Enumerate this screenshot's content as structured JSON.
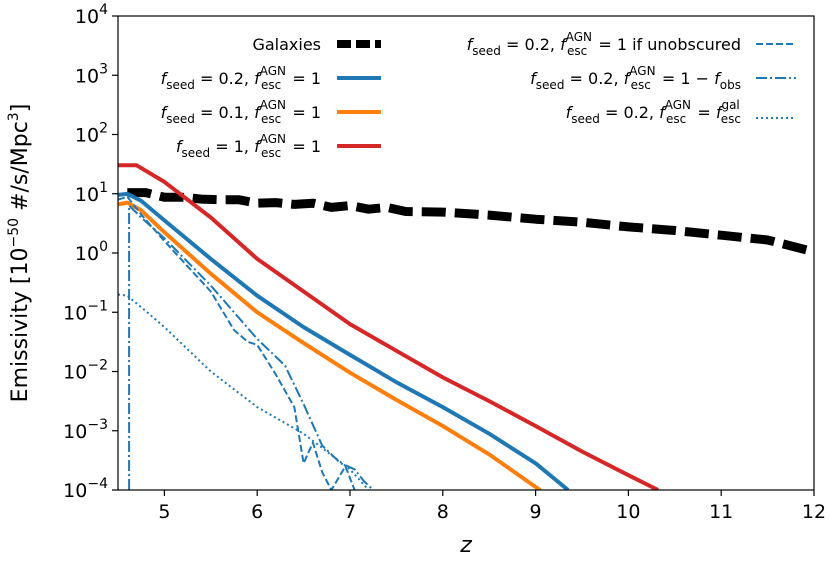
{
  "chart_data": {
    "type": "line",
    "xlabel": "z",
    "ylabel": "Emissivity [10⁻⁵⁰ #/s/Mpc³]",
    "xlim": [
      4.5,
      12
    ],
    "ylim_log10": [
      -4,
      4
    ],
    "yscale": "log",
    "x_ticks": [
      5,
      6,
      7,
      8,
      9,
      10,
      11,
      12
    ],
    "x_tick_labels": [
      "5",
      "6",
      "7",
      "8",
      "9",
      "10",
      "11",
      "12"
    ],
    "y_ticks": [
      {
        "base": "10",
        "exp": "−4",
        "value": -4
      },
      {
        "base": "10",
        "exp": "−3",
        "value": -3
      },
      {
        "base": "10",
        "exp": "−2",
        "value": -2
      },
      {
        "base": "10",
        "exp": "−1",
        "value": -1
      },
      {
        "base": "10",
        "exp": "0",
        "value": 0
      },
      {
        "base": "10",
        "exp": "1",
        "value": 1
      },
      {
        "base": "10",
        "exp": "2",
        "value": 2
      },
      {
        "base": "10",
        "exp": "3",
        "value": 3
      },
      {
        "base": "10",
        "exp": "4",
        "value": 4
      }
    ],
    "legend_left_position": "top-center",
    "legend_right_position": "top-right",
    "series": [
      {
        "name": "Galaxies",
        "legend_label": "Galaxies",
        "color": "#000000",
        "style": "dashed-thick",
        "x": [
          4.6,
          4.8,
          5.0,
          5.2,
          5.4,
          5.6,
          5.8,
          6.0,
          6.2,
          6.4,
          6.6,
          6.8,
          7.0,
          7.2,
          7.4,
          7.6,
          8.0,
          8.5,
          9.0,
          9.5,
          10.0,
          10.5,
          11.0,
          11.5,
          12.0
        ],
        "y_log10": [
          1.02,
          1.02,
          0.94,
          0.94,
          0.91,
          0.9,
          0.9,
          0.84,
          0.85,
          0.82,
          0.84,
          0.77,
          0.8,
          0.74,
          0.77,
          0.7,
          0.69,
          0.64,
          0.57,
          0.52,
          0.44,
          0.38,
          0.3,
          0.22,
          0.02
        ]
      },
      {
        "name": "fseed=0.2 fesc=1",
        "legend_label": "f_seed = 0.2, f_esc^AGN = 1",
        "color": "#1f77b4",
        "style": "solid",
        "x": [
          4.5,
          4.6,
          4.75,
          5.0,
          5.5,
          6.0,
          6.5,
          7.0,
          7.5,
          8.0,
          8.5,
          9.0,
          9.35
        ],
        "y_log10": [
          0.98,
          1.0,
          0.88,
          0.55,
          -0.1,
          -0.72,
          -1.25,
          -1.72,
          -2.18,
          -2.6,
          -3.05,
          -3.55,
          -4.0
        ]
      },
      {
        "name": "fseed=0.1 fesc=1",
        "legend_label": "f_seed = 0.1, f_esc^AGN = 1",
        "color": "#ff7f0e",
        "style": "solid",
        "x": [
          4.5,
          4.6,
          4.75,
          5.0,
          5.5,
          6.0,
          6.5,
          7.0,
          7.5,
          8.0,
          8.5,
          9.0,
          9.05
        ],
        "y_log10": [
          0.82,
          0.85,
          0.72,
          0.35,
          -0.35,
          -1.0,
          -1.52,
          -2.02,
          -2.48,
          -2.92,
          -3.4,
          -3.95,
          -4.0
        ]
      },
      {
        "name": "fseed=1 fesc=1",
        "legend_label": "f_seed = 1, f_esc^AGN = 1",
        "color": "#d62728",
        "style": "solid",
        "x": [
          4.5,
          4.7,
          5.0,
          5.5,
          6.0,
          6.5,
          7.0,
          7.5,
          8.0,
          8.5,
          9.0,
          9.5,
          10.0,
          10.32
        ],
        "y_log10": [
          1.48,
          1.48,
          1.2,
          0.6,
          -0.1,
          -0.65,
          -1.2,
          -1.65,
          -2.1,
          -2.5,
          -2.92,
          -3.35,
          -3.75,
          -4.0
        ]
      },
      {
        "name": "fseed=0.2 fesc=1 if unobscured",
        "legend_label": "f_seed = 0.2, f_esc^AGN = 1 if unobscured",
        "color": "#1f77b4",
        "style": "dashed",
        "x": [
          4.5,
          4.6,
          4.75,
          5.0,
          5.5,
          5.75,
          5.9,
          6.0,
          6.2,
          6.4,
          6.5,
          6.6,
          6.7,
          6.8,
          6.95,
          7.05
        ],
        "y_log10": [
          0.9,
          0.95,
          0.65,
          0.2,
          -0.65,
          -1.3,
          -1.5,
          -1.55,
          -2.05,
          -2.6,
          -3.55,
          -3.2,
          -3.7,
          -4.0,
          -3.6,
          -4.0
        ]
      },
      {
        "name": "fseed=0.2 fesc=1-fobs",
        "legend_label": "f_seed = 0.2, f_esc^AGN = 1 − f_obs",
        "color": "#1f77b4",
        "style": "dashdot",
        "x": [
          4.62,
          4.62,
          4.75,
          5.0,
          5.5,
          6.0,
          6.3,
          6.5,
          6.7,
          6.9,
          7.05,
          7.15,
          7.25
        ],
        "y_log10": [
          -4.0,
          0.8,
          0.6,
          0.25,
          -0.55,
          -1.45,
          -1.9,
          -2.55,
          -3.25,
          -3.55,
          -3.65,
          -3.85,
          -4.0
        ]
      },
      {
        "name": "fseed=0.2 fesc=fesc_gal",
        "legend_label": "f_seed = 0.2, f_esc^AGN = f_esc^gal",
        "color": "#1f77b4",
        "style": "dotted",
        "x": [
          4.5,
          4.6,
          4.8,
          5.0,
          5.5,
          6.0,
          6.5,
          7.0,
          7.2
        ],
        "y_log10": [
          -0.7,
          -0.72,
          -0.98,
          -1.25,
          -2.0,
          -2.6,
          -3.05,
          -3.65,
          -4.0
        ]
      }
    ]
  },
  "legend_left": {
    "galaxies": "Galaxies",
    "e1_f": "f",
    "e1_seedsub": "seed",
    "e1_eq": " = 0.2, ",
    "e1_f2": "f",
    "e1_sup": "AGN",
    "e1_sub": "esc",
    "e1_tail": " = 1",
    "e2_f": "f",
    "e2_seedsub": "seed",
    "e2_eq": " = 0.1, ",
    "e2_f2": "f",
    "e2_sup": "AGN",
    "e2_sub": "esc",
    "e2_tail": " = 1",
    "e3_f": "f",
    "e3_seedsub": "seed",
    "e3_eq": " = 1, ",
    "e3_f2": "f",
    "e3_sup": "AGN",
    "e3_sub": "esc",
    "e3_tail": " = 1"
  },
  "legend_right": {
    "r1_f": "f",
    "r1_seedsub": "seed",
    "r1_eq": " = 0.2, ",
    "r1_f2": "f",
    "r1_sup": "AGN",
    "r1_sub": "esc",
    "r1_tail": " = 1 if unobscured",
    "r2_f": "f",
    "r2_seedsub": "seed",
    "r2_eq": " = 0.2, ",
    "r2_f2": "f",
    "r2_sup": "AGN",
    "r2_sub": "esc",
    "r2_mid": " = 1 − ",
    "r2_f3": "f",
    "r2_obs": "obs",
    "r3_f": "f",
    "r3_seedsub": "seed",
    "r3_eq": " = 0.2, ",
    "r3_f2": "f",
    "r3_sup": "AGN",
    "r3_sub": "esc",
    "r3_mid": " = ",
    "r3_f3": "f",
    "r3_sup2": "gal",
    "r3_sub2": "esc"
  },
  "axes": {
    "xlabel": "z",
    "ylabel_pre": "Emissivity [10",
    "ylabel_exp": "−50",
    "ylabel_mid": " #/s/Mpc",
    "ylabel_exp2": "3",
    "ylabel_post": "]"
  }
}
